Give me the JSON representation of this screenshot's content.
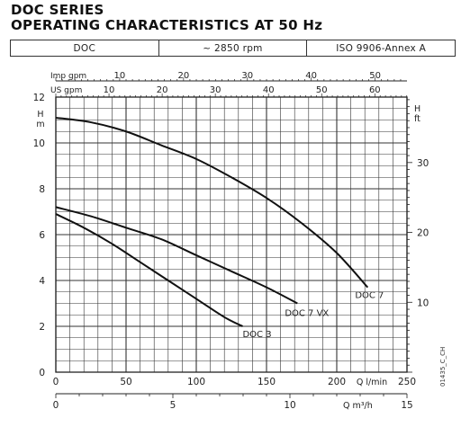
{
  "title_line1": "DOC SERIES",
  "title_line2": "OPERATING CHARACTERISTICS AT 50 Hz",
  "spec": {
    "model": "DOC",
    "speed": "~ 2850 rpm",
    "standard": "ISO 9906-Annex A"
  },
  "code": "01435_C_CH",
  "chart_data": {
    "type": "line",
    "x_axis_primary": {
      "label": "Q l/min",
      "range": [
        0,
        250
      ],
      "ticks": [
        0,
        50,
        100,
        150,
        200,
        250
      ]
    },
    "x_axis_secondary_bottom": {
      "label": "Q m³/h",
      "range": [
        0,
        15
      ],
      "ticks": [
        0,
        5,
        10,
        15
      ]
    },
    "x_axis_top_imp": {
      "label": "Imp gpm",
      "ticks": [
        10,
        20,
        30,
        40,
        50
      ]
    },
    "x_axis_top_us": {
      "label": "US gpm",
      "ticks": [
        10,
        20,
        30,
        40,
        50,
        60
      ]
    },
    "y_axis_left": {
      "label": "H m",
      "range": [
        0,
        12
      ],
      "ticks": [
        0,
        2,
        4,
        6,
        8,
        10,
        12
      ]
    },
    "y_axis_right": {
      "label": "H ft",
      "ticks": [
        10,
        20,
        30
      ]
    },
    "grid": true,
    "series": [
      {
        "name": "DOC 3",
        "x": [
          0,
          20,
          40,
          60,
          80,
          100,
          120,
          133
        ],
        "y": [
          6.9,
          6.3,
          5.6,
          4.8,
          4.0,
          3.2,
          2.4,
          2.0
        ]
      },
      {
        "name": "DOC 7 VX",
        "x": [
          0,
          25,
          50,
          75,
          100,
          125,
          150,
          172
        ],
        "y": [
          7.2,
          6.8,
          6.3,
          5.8,
          5.1,
          4.4,
          3.7,
          3.0
        ]
      },
      {
        "name": "DOC 7",
        "x": [
          0,
          25,
          50,
          75,
          100,
          125,
          150,
          175,
          200,
          222
        ],
        "y": [
          11.1,
          10.9,
          10.5,
          9.9,
          9.3,
          8.5,
          7.6,
          6.5,
          5.2,
          3.7
        ]
      }
    ]
  }
}
